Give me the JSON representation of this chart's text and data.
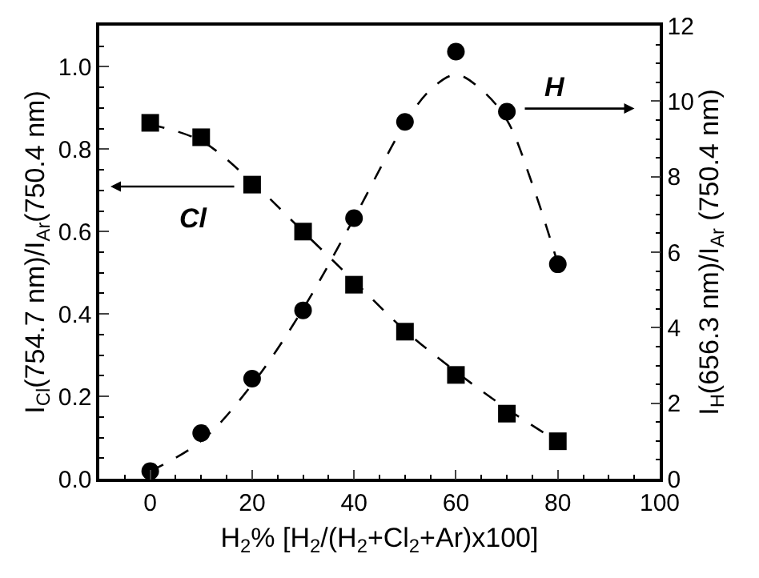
{
  "chart_data": {
    "type": "scatter",
    "xlabel": "H$_{2}$% [H$_{2}$/(H$_{2}$+Cl$_{2}$+Ar)x100]",
    "ylabel": "I$_{Cl}$(754.7 nm)/I$_{Ar}$(750.4 nm)",
    "y2label": "I$_{H}$(656.3 nm)/I$_{Ar}$ (750.4 nm)",
    "x": [
      0,
      10,
      20,
      30,
      40,
      50,
      60,
      70,
      80
    ],
    "series": [
      {
        "marker": "square",
        "color": "#000000",
        "values": [
          0.864,
          0.829,
          0.714,
          0.6,
          0.471,
          0.357,
          0.252,
          0.158,
          0.091
        ]
      },
      {
        "marker": "circle",
        "color": "#000000",
        "axis": "y2",
        "values": [
          0.2,
          1.21,
          2.65,
          4.46,
          6.9,
          9.45,
          11.31,
          9.72,
          5.68
        ]
      },
      {
        "type": "line",
        "line_style": "dashed",
        "color": "#000000",
        "x": [
          0,
          10,
          20,
          30,
          40,
          50,
          60,
          70,
          80
        ],
        "values": [
          0.86,
          0.82,
          0.72,
          0.6,
          0.48,
          0.36,
          0.26,
          0.17,
          0.09
        ]
      },
      {
        "type": "line",
        "line_style": "dashed",
        "color": "#000000",
        "axis": "y2",
        "x": [
          0,
          10,
          20,
          30,
          40,
          50,
          55,
          60,
          65,
          70,
          75,
          80
        ],
        "values": [
          0.2,
          1.0,
          2.5,
          4.5,
          6.9,
          9.4,
          10.3,
          10.7,
          10.3,
          9.5,
          7.8,
          5.7
        ]
      }
    ],
    "xlim": [
      -10,
      100
    ],
    "xticks": [
      0,
      20,
      40,
      60,
      80,
      100
    ],
    "ylim": [
      0,
      1.1
    ],
    "yticks": [
      {
        "value": 0,
        "label": "0.0"
      },
      {
        "value": 0.2,
        "label": "0.2"
      },
      {
        "value": 0.4,
        "label": "0.4"
      },
      {
        "value": 0.6,
        "label": "0.6"
      },
      {
        "value": 0.8,
        "label": "0.8"
      },
      {
        "value": 1,
        "label": "1.0"
      }
    ],
    "y2lim": [
      0,
      12
    ],
    "y2ticks": [
      0,
      2,
      4,
      6,
      8,
      10,
      12
    ],
    "annotations": [
      "Cl",
      "H"
    ],
    "legend": false
  }
}
